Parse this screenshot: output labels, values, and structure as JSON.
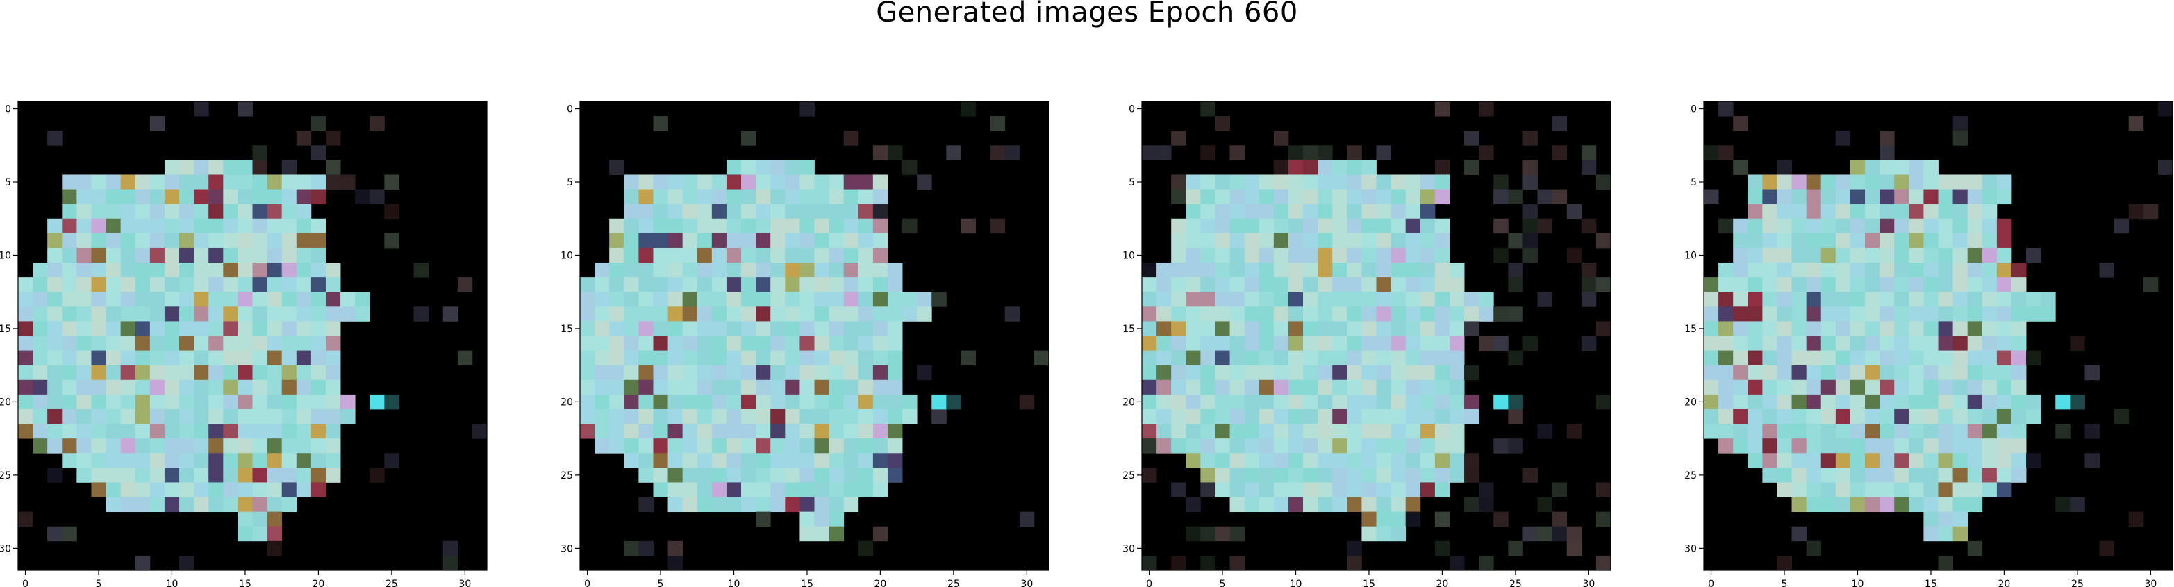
{
  "figure": {
    "suptitle": "Generated images Epoch 660"
  },
  "chart_data": {
    "type": "heatmap",
    "title": "Generated images Epoch 660",
    "panels": 4,
    "grid_size": [
      32,
      32
    ],
    "xlim": [
      -0.5,
      31.5
    ],
    "ylim": [
      31.5,
      -0.5
    ],
    "xticks": [
      0,
      5,
      10,
      15,
      20,
      25,
      30
    ],
    "yticks": [
      0,
      5,
      10,
      15,
      20,
      25,
      30
    ],
    "background_color": "#000000",
    "dominant_color": "#95dcda",
    "shape_rows": [
      [
        4,
        10,
        15
      ],
      [
        5,
        3,
        20
      ],
      [
        6,
        3,
        20
      ],
      [
        7,
        3,
        19
      ],
      [
        8,
        2,
        20
      ],
      [
        9,
        2,
        20
      ],
      [
        10,
        2,
        20
      ],
      [
        11,
        1,
        21
      ],
      [
        12,
        0,
        21
      ],
      [
        13,
        0,
        23
      ],
      [
        14,
        0,
        23
      ],
      [
        15,
        0,
        21
      ],
      [
        16,
        0,
        21
      ],
      [
        17,
        0,
        21
      ],
      [
        18,
        0,
        21
      ],
      [
        19,
        0,
        21
      ],
      [
        20,
        0,
        22
      ],
      [
        21,
        0,
        22
      ],
      [
        22,
        0,
        21
      ],
      [
        23,
        1,
        21
      ],
      [
        24,
        3,
        21
      ],
      [
        25,
        4,
        21
      ],
      [
        26,
        5,
        20
      ],
      [
        27,
        6,
        18
      ],
      [
        28,
        15,
        17
      ],
      [
        29,
        15,
        17
      ]
    ],
    "accent_pixels": [
      {
        "row": 20,
        "col": 24,
        "color": "#4fe0e8"
      },
      {
        "row": 20,
        "col": 25,
        "color": "#1f4a4c"
      }
    ]
  }
}
